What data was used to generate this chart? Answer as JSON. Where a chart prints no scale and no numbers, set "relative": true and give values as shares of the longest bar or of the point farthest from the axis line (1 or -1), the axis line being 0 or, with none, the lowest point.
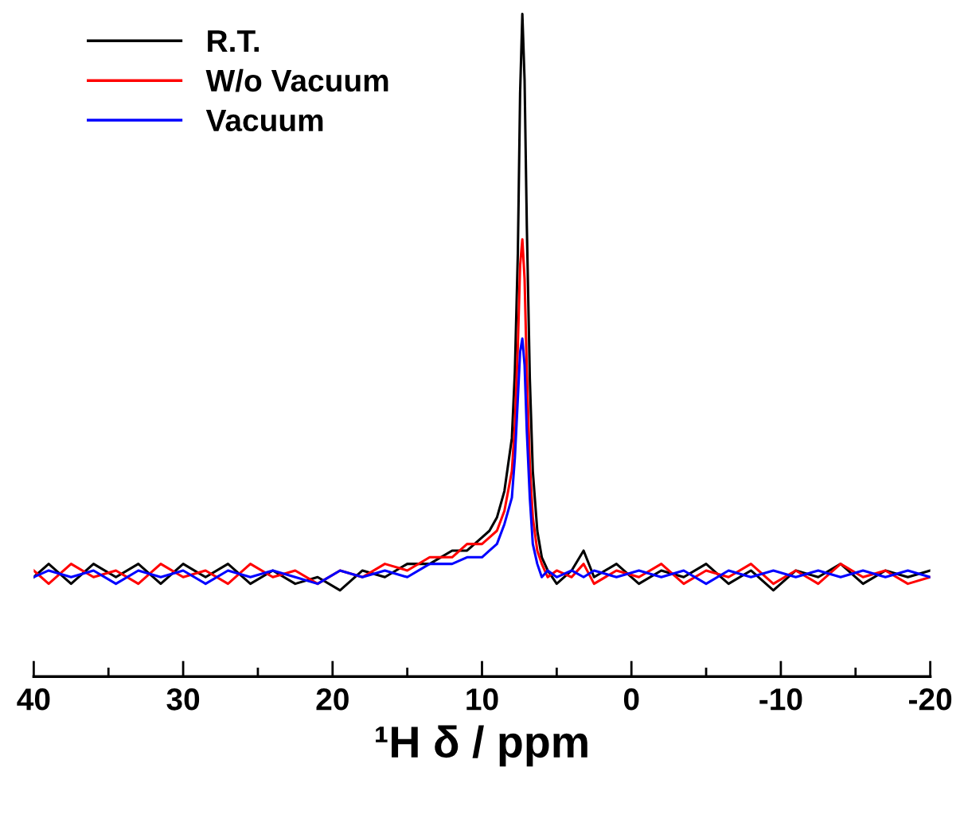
{
  "chart_data": {
    "type": "line",
    "relative": true,
    "xlabel": "¹H δ / ppm",
    "xlim": [
      40,
      -20
    ],
    "xticks": [
      40,
      30,
      20,
      10,
      0,
      -10,
      -20
    ],
    "grid": false,
    "legend": "top left",
    "marker": "none",
    "line_style": "solid",
    "x": [
      40,
      39,
      37.5,
      36,
      34.5,
      33,
      31.5,
      30,
      28.5,
      27,
      25.5,
      24,
      22.5,
      21,
      19.5,
      18,
      16.5,
      15,
      13.5,
      12,
      11,
      10,
      9.5,
      9,
      8.5,
      8,
      7.8,
      7.6,
      7.45,
      7.3,
      7.15,
      7.0,
      6.8,
      6.6,
      6.3,
      6.0,
      5.6,
      5,
      4,
      3.2,
      2.5,
      1,
      -0.5,
      -2,
      -3.5,
      -5,
      -6.5,
      -8,
      -9.5,
      -11,
      -12.5,
      -14,
      -15.5,
      -17,
      -18.5,
      -20
    ],
    "series": [
      {
        "name": "R.T.",
        "color": "#000000",
        "values": [
          0.15,
          0.17,
          0.14,
          0.17,
          0.15,
          0.17,
          0.14,
          0.17,
          0.15,
          0.17,
          0.14,
          0.16,
          0.14,
          0.15,
          0.13,
          0.16,
          0.15,
          0.17,
          0.17,
          0.19,
          0.19,
          0.21,
          0.22,
          0.24,
          0.28,
          0.36,
          0.46,
          0.64,
          0.88,
          1,
          0.9,
          0.68,
          0.45,
          0.31,
          0.22,
          0.18,
          0.16,
          0.14,
          0.16,
          0.19,
          0.15,
          0.17,
          0.14,
          0.16,
          0.15,
          0.17,
          0.14,
          0.16,
          0.13,
          0.16,
          0.15,
          0.17,
          0.14,
          0.16,
          0.15,
          0.16
        ]
      },
      {
        "name": "W/o Vacuum",
        "color": "#ff0000",
        "values": [
          0.16,
          0.14,
          0.17,
          0.15,
          0.16,
          0.14,
          0.17,
          0.15,
          0.16,
          0.14,
          0.17,
          0.15,
          0.16,
          0.14,
          0.16,
          0.15,
          0.17,
          0.16,
          0.18,
          0.18,
          0.2,
          0.2,
          0.21,
          0.22,
          0.25,
          0.31,
          0.38,
          0.5,
          0.62,
          0.66,
          0.6,
          0.46,
          0.32,
          0.24,
          0.19,
          0.17,
          0.15,
          0.16,
          0.15,
          0.17,
          0.14,
          0.16,
          0.15,
          0.17,
          0.14,
          0.16,
          0.15,
          0.17,
          0.14,
          0.16,
          0.14,
          0.17,
          0.15,
          0.16,
          0.14,
          0.15
        ]
      },
      {
        "name": "Vacuum",
        "color": "#0000ff",
        "values": [
          0.15,
          0.16,
          0.15,
          0.16,
          0.14,
          0.16,
          0.15,
          0.16,
          0.14,
          0.16,
          0.15,
          0.16,
          0.15,
          0.14,
          0.16,
          0.15,
          0.16,
          0.15,
          0.17,
          0.17,
          0.18,
          0.18,
          0.19,
          0.2,
          0.23,
          0.27,
          0.33,
          0.42,
          0.49,
          0.51,
          0.47,
          0.37,
          0.27,
          0.2,
          0.17,
          0.15,
          0.16,
          0.15,
          0.16,
          0.15,
          0.16,
          0.15,
          0.16,
          0.15,
          0.16,
          0.14,
          0.16,
          0.15,
          0.16,
          0.15,
          0.16,
          0.15,
          0.16,
          0.15,
          0.16,
          0.15
        ]
      }
    ]
  }
}
